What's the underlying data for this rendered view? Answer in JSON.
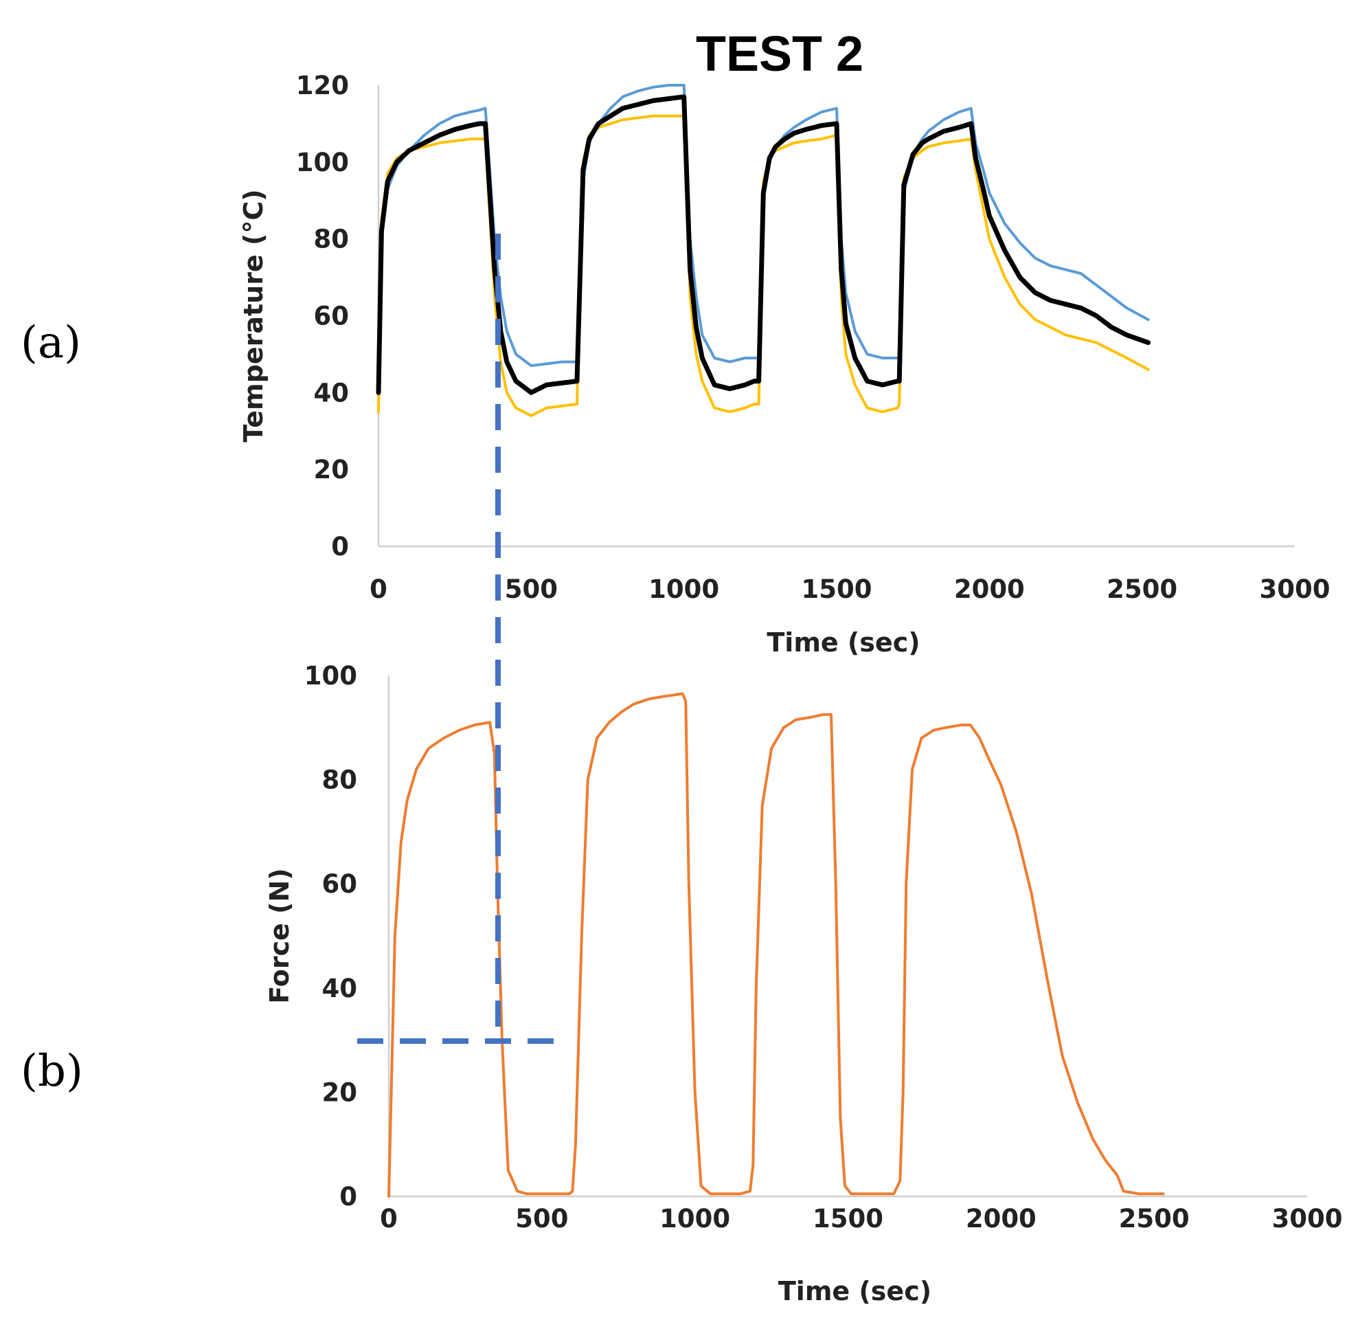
{
  "figure": {
    "title": "TEST 2",
    "panel_labels": [
      "(a)",
      "(b)"
    ]
  },
  "chart_data": [
    {
      "id": "a",
      "type": "line",
      "title": "TEST 2",
      "xlabel": "Time (sec)",
      "ylabel": "Temperature (°C)",
      "xlim": [
        0,
        3000
      ],
      "ylim": [
        0,
        120
      ],
      "xticks": [
        0,
        500,
        1000,
        1500,
        2000,
        2500,
        3000
      ],
      "yticks": [
        0,
        20,
        40,
        60,
        80,
        100,
        120
      ],
      "grid": false,
      "legend": "none",
      "series": [
        {
          "color": "#5b9bd5",
          "width": 4,
          "x": [
            0,
            10,
            30,
            60,
            100,
            150,
            200,
            250,
            300,
            330,
            350,
            380,
            400,
            420,
            450,
            500,
            550,
            600,
            650,
            670,
            690,
            720,
            760,
            800,
            850,
            900,
            950,
            1000,
            1020,
            1040,
            1060,
            1100,
            1150,
            1200,
            1230,
            1245,
            1260,
            1280,
            1300,
            1330,
            1360,
            1400,
            1450,
            1500,
            1515,
            1530,
            1560,
            1600,
            1650,
            1700,
            1705,
            1720,
            1750,
            1780,
            1800,
            1850,
            1900,
            1940,
            1955,
            1980,
            2000,
            2050,
            2100,
            2150,
            2200,
            2250,
            2300,
            2350,
            2400,
            2450,
            2520
          ],
          "values": [
            40,
            80,
            93,
            99,
            103,
            107,
            110,
            112,
            113,
            113.5,
            114,
            80,
            65,
            56,
            50,
            47,
            47.5,
            48,
            48,
            95,
            105,
            110,
            114,
            117,
            118.5,
            119.5,
            120,
            120,
            80,
            65,
            55,
            49,
            48,
            49,
            49,
            49,
            90,
            100,
            104,
            107,
            109,
            111,
            113,
            114,
            80,
            66,
            56,
            50,
            49,
            49,
            49,
            92,
            102,
            106,
            108,
            111,
            113,
            114,
            105,
            98,
            92,
            84,
            79,
            75,
            73,
            72,
            71,
            68,
            65,
            62,
            59
          ]
        },
        {
          "color": "#ffc000",
          "width": 4,
          "x": [
            0,
            10,
            30,
            60,
            100,
            150,
            200,
            250,
            300,
            330,
            350,
            380,
            400,
            420,
            450,
            500,
            550,
            600,
            650,
            670,
            690,
            720,
            760,
            800,
            850,
            900,
            950,
            1000,
            1020,
            1040,
            1060,
            1100,
            1150,
            1200,
            1230,
            1245,
            1260,
            1280,
            1300,
            1330,
            1360,
            1400,
            1450,
            1500,
            1515,
            1530,
            1560,
            1600,
            1650,
            1700,
            1705,
            1720,
            1750,
            1780,
            1800,
            1850,
            1900,
            1940,
            1955,
            1980,
            2000,
            2050,
            2100,
            2150,
            2200,
            2250,
            2300,
            2350,
            2400,
            2450,
            2520
          ],
          "values": [
            35,
            85,
            97,
            101,
            103,
            104,
            105,
            105.5,
            106,
            106,
            106,
            65,
            48,
            40,
            36,
            34,
            36,
            36.5,
            37,
            100,
            107,
            109,
            110,
            111,
            111.5,
            112,
            112,
            112,
            65,
            50,
            43,
            36,
            35,
            36,
            37,
            37,
            95,
            101,
            103,
            104,
            105,
            105.5,
            106,
            107,
            65,
            50,
            42,
            36,
            35,
            36,
            37,
            96,
            101,
            103,
            104,
            105,
            105.5,
            106,
            98,
            88,
            80,
            70,
            63,
            59,
            57,
            55,
            54,
            53,
            51,
            49,
            46
          ]
        },
        {
          "color": "#000000",
          "width": 7,
          "x": [
            0,
            10,
            30,
            60,
            100,
            150,
            200,
            250,
            300,
            330,
            350,
            380,
            400,
            420,
            450,
            500,
            550,
            600,
            650,
            670,
            690,
            720,
            760,
            800,
            850,
            900,
            950,
            1000,
            1020,
            1040,
            1060,
            1100,
            1150,
            1200,
            1230,
            1245,
            1260,
            1280,
            1300,
            1330,
            1360,
            1400,
            1450,
            1500,
            1515,
            1530,
            1560,
            1600,
            1650,
            1700,
            1705,
            1720,
            1750,
            1780,
            1800,
            1850,
            1900,
            1940,
            1955,
            1980,
            2000,
            2050,
            2100,
            2150,
            2200,
            2250,
            2300,
            2350,
            2400,
            2450,
            2520
          ],
          "values": [
            40,
            82,
            95,
            100,
            103,
            105,
            107,
            108.5,
            109.5,
            110,
            110,
            72,
            56,
            48,
            43,
            40,
            42,
            42.5,
            43,
            98,
            106,
            110,
            112,
            114,
            115,
            116,
            116.5,
            117,
            72,
            57,
            49,
            42,
            41,
            42,
            43,
            43,
            92,
            101,
            104,
            106,
            107.5,
            108.5,
            109.5,
            110,
            72,
            58,
            49,
            43,
            42,
            43,
            43,
            94,
            102,
            105,
            106,
            108,
            109,
            110,
            101,
            93,
            86,
            77,
            70,
            66,
            64,
            63,
            62,
            60,
            57,
            55,
            53
          ]
        }
      ]
    },
    {
      "id": "b",
      "type": "line",
      "xlabel": "Time (sec)",
      "ylabel": "Force (N)",
      "xlim": [
        0,
        3000
      ],
      "ylim": [
        0,
        100
      ],
      "xticks": [
        0,
        500,
        1000,
        1500,
        2000,
        2500,
        3000
      ],
      "yticks": [
        0,
        20,
        40,
        60,
        80,
        100
      ],
      "grid": false,
      "legend": "none",
      "series": [
        {
          "color": "#ed7d31",
          "width": 4,
          "x": [
            0,
            10,
            20,
            40,
            60,
            90,
            130,
            180,
            230,
            280,
            330,
            345,
            355,
            370,
            390,
            420,
            450,
            500,
            550,
            590,
            600,
            610,
            630,
            650,
            680,
            720,
            760,
            800,
            850,
            900,
            960,
            970,
            980,
            1000,
            1020,
            1050,
            1100,
            1150,
            1180,
            1190,
            1200,
            1220,
            1250,
            1290,
            1330,
            1380,
            1420,
            1445,
            1460,
            1475,
            1490,
            1510,
            1550,
            1600,
            1650,
            1670,
            1680,
            1690,
            1710,
            1740,
            1780,
            1820,
            1870,
            1900,
            1930,
            1960,
            2000,
            2050,
            2100,
            2150,
            2200,
            2250,
            2300,
            2340,
            2380,
            2400,
            2450,
            2530
          ],
          "values": [
            0,
            25,
            50,
            68,
            76,
            82,
            86,
            88,
            89.5,
            90.5,
            91,
            85,
            60,
            30,
            5,
            1,
            0.5,
            0.5,
            0.5,
            0.5,
            1,
            10,
            50,
            80,
            88,
            91,
            93,
            94.5,
            95.5,
            96,
            96.5,
            95,
            60,
            20,
            2,
            0.5,
            0.5,
            0.5,
            1,
            6,
            40,
            75,
            86,
            90,
            91.5,
            92,
            92.5,
            92.5,
            60,
            15,
            2,
            0.5,
            0.5,
            0.5,
            0.5,
            3,
            20,
            60,
            82,
            88,
            89.5,
            90,
            90.5,
            90.5,
            88,
            84,
            79,
            70,
            58,
            42,
            27,
            18,
            11,
            7,
            4,
            1,
            0.5,
            0.5
          ]
        }
      ]
    }
  ]
}
